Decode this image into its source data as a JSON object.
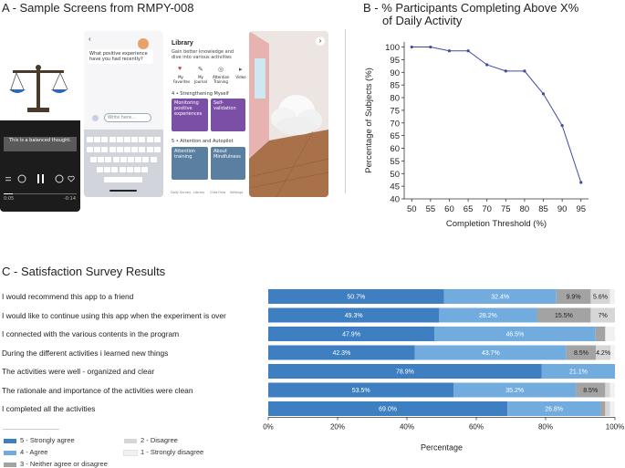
{
  "panel_a": {
    "title": "A - Sample Screens from RMPY-008",
    "screen1": {
      "caption": "This is a balanced thought.",
      "time_left": "0:05",
      "time_right": "-0:14"
    },
    "screen2": {
      "question": "What positive experience have you had recently?",
      "input_placeholder": "Write here..."
    },
    "screen3": {
      "library_title": "Library",
      "library_subtitle": "Gain better knowledge and dive into various activities",
      "quick_items": [
        "My Favorites",
        "My Journal",
        "Attention Training",
        "Video"
      ],
      "section4": "4 • Strengthening Myself",
      "cards4": [
        "Monitoring positive experiences",
        "Self-validation"
      ],
      "section5": "5 • Attention and Autopilot",
      "cards5": [
        "Attention training",
        "About Mindfulness"
      ],
      "nav": [
        "Daily Survey",
        "Library",
        "Chat Flow",
        "Settings"
      ]
    }
  },
  "panel_b": {
    "title_line1": "B - % Participants Completing Above X%",
    "title_line2": "of Daily Activity"
  },
  "panel_c": {
    "title": "C - Satisfaction Survey Results"
  },
  "colors": {
    "strongly_agree": "#3d7fc1",
    "agree": "#72acdf",
    "neither": "#a3a3a3",
    "disagree": "#d6d6d6",
    "strongly_disagree": "#f1f1f1",
    "line": "#3f4ba3",
    "purple": "#7b4fa6",
    "slate": "#5b7fa0"
  },
  "chart_data": [
    {
      "type": "line",
      "title": "B - % Participants Completing Above X% of Daily Activity",
      "xlabel": "Completion Threshold (%)",
      "ylabel": "Percentage of Subjects (%)",
      "x": [
        50,
        55,
        60,
        65,
        70,
        75,
        80,
        85,
        90,
        95
      ],
      "y": [
        100,
        100,
        98.5,
        98.5,
        93,
        90.5,
        90.5,
        81.5,
        69,
        46.5
      ],
      "xticks": [
        50,
        55,
        60,
        65,
        70,
        75,
        80,
        85,
        90,
        95
      ],
      "yticks": [
        40,
        45,
        50,
        55,
        60,
        65,
        70,
        75,
        80,
        85,
        90,
        95,
        100
      ],
      "xlim": [
        48,
        97
      ],
      "ylim": [
        40,
        102
      ],
      "grid": false
    },
    {
      "type": "bar",
      "orientation": "horizontal-stacked",
      "title": "C - Satisfaction Survey Results",
      "xlabel": "Percentage",
      "xticks": [
        "0%",
        "20%",
        "40%",
        "60%",
        "80%",
        "100%"
      ],
      "xlim": [
        0,
        100
      ],
      "categories": [
        "I would recommend this app to a friend",
        "I would like to continue using this app when the experiment is over",
        "I connected with the various contents in the program",
        "During the different activities i learned new things",
        "The activities were well - organized and clear",
        "The rationale and importance of the activities were clean",
        "I completed all the activities"
      ],
      "series": [
        {
          "name": "5 - Strongly agree",
          "color": "#3d7fc1",
          "values": [
            50.7,
            49.3,
            47.9,
            42.3,
            78.9,
            53.5,
            69.0
          ],
          "labels": [
            "50.7%",
            "49.3%",
            "47.9%",
            "42.3%",
            "78.9%",
            "53.5%",
            "69.0%"
          ]
        },
        {
          "name": "4 - Agree",
          "color": "#72acdf",
          "values": [
            32.4,
            28.2,
            46.5,
            43.7,
            21.1,
            35.2,
            26.8
          ],
          "labels": [
            "32.4%",
            "28.2%",
            "46.5%",
            "43.7%",
            "21.1%",
            "35.2%",
            "26.8%"
          ]
        },
        {
          "name": "3 - Neither agree or disagree",
          "color": "#a3a3a3",
          "values": [
            9.9,
            15.5,
            2.8,
            8.5,
            0,
            8.5,
            1.4
          ],
          "labels": [
            "9.9%",
            "15.5%",
            "",
            "8.5%",
            "",
            "8.5%",
            ""
          ]
        },
        {
          "name": "2 - Disagree",
          "color": "#d6d6d6",
          "values": [
            5.6,
            7.0,
            0,
            4.2,
            0,
            1.4,
            1.4
          ],
          "labels": [
            "5.6%",
            "7%",
            "",
            "4.2%",
            "",
            "",
            ""
          ]
        },
        {
          "name": "1 - Strongly disagree",
          "color": "#f1f1f1",
          "values": [
            1.4,
            0,
            2.8,
            1.3,
            0,
            1.4,
            1.4
          ],
          "labels": [
            "",
            "",
            "",
            "",
            "",
            "",
            ""
          ]
        }
      ],
      "legend": [
        "5 - Strongly agree",
        "4 - Agree",
        "3 - Neither agree or disagree",
        "2 - Disagree",
        "1 - Strongly disagree"
      ],
      "legend_position": "bottom-left"
    }
  ]
}
